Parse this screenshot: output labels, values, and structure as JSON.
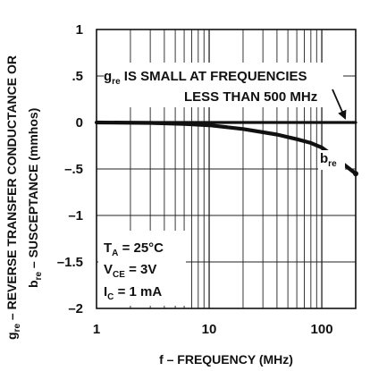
{
  "chart_data": {
    "type": "line",
    "xscale": "log",
    "xlim": [
      1,
      200
    ],
    "ylim": [
      -2,
      1
    ],
    "grid": true,
    "xlabel": "f – FREQUENCY (MHz)",
    "ylabel_line1": "g",
    "ylabel_line1_sub": "re",
    "ylabel_line1_rest": " – REVERSE TRANSFER CONDUCTANCE OR",
    "ylabel_line2": "b",
    "ylabel_line2_sub": "re",
    "ylabel_line2_rest": " – SUSCEPTANCE (mmhos)",
    "x_ticks": [
      {
        "value": 1,
        "label": "1"
      },
      {
        "value": 10,
        "label": "10"
      },
      {
        "value": 100,
        "label": "100"
      }
    ],
    "y_ticks": [
      {
        "value": 1,
        "label": "1"
      },
      {
        "value": 0.5,
        "label": ".5"
      },
      {
        "value": 0,
        "label": "0"
      },
      {
        "value": -0.5,
        "label": "–.5"
      },
      {
        "value": -1,
        "label": "–1"
      },
      {
        "value": -1.5,
        "label": "–1.5"
      },
      {
        "value": -2,
        "label": "–2"
      }
    ],
    "series": [
      {
        "name_main": "g",
        "name_sub": "re",
        "x": [
          1,
          2,
          5,
          10,
          20,
          50,
          100,
          200
        ],
        "y": [
          0,
          0,
          0,
          0,
          0,
          0,
          0,
          0
        ]
      },
      {
        "name_main": "b",
        "name_sub": "re",
        "x": [
          1,
          3,
          6,
          10,
          20,
          40,
          60,
          80,
          100,
          130,
          160,
          200
        ],
        "y": [
          0,
          -0.005,
          -0.015,
          -0.03,
          -0.07,
          -0.13,
          -0.18,
          -0.22,
          -0.27,
          -0.37,
          -0.46,
          -0.55
        ]
      }
    ],
    "annotations": {
      "gre_note_main": "g",
      "gre_note_sub": "re",
      "gre_note_rest": " IS SMALL AT FREQUENCIES",
      "gre_note_line2": "LESS THAN 500 MHz",
      "conditions": [
        {
          "main": "T",
          "sub": "A",
          "rest": " = 25°C"
        },
        {
          "main": "V",
          "sub": "CE",
          "rest": " = 3V"
        },
        {
          "main": "I",
          "sub": "C",
          "rest": " = 1 mA"
        }
      ]
    }
  }
}
